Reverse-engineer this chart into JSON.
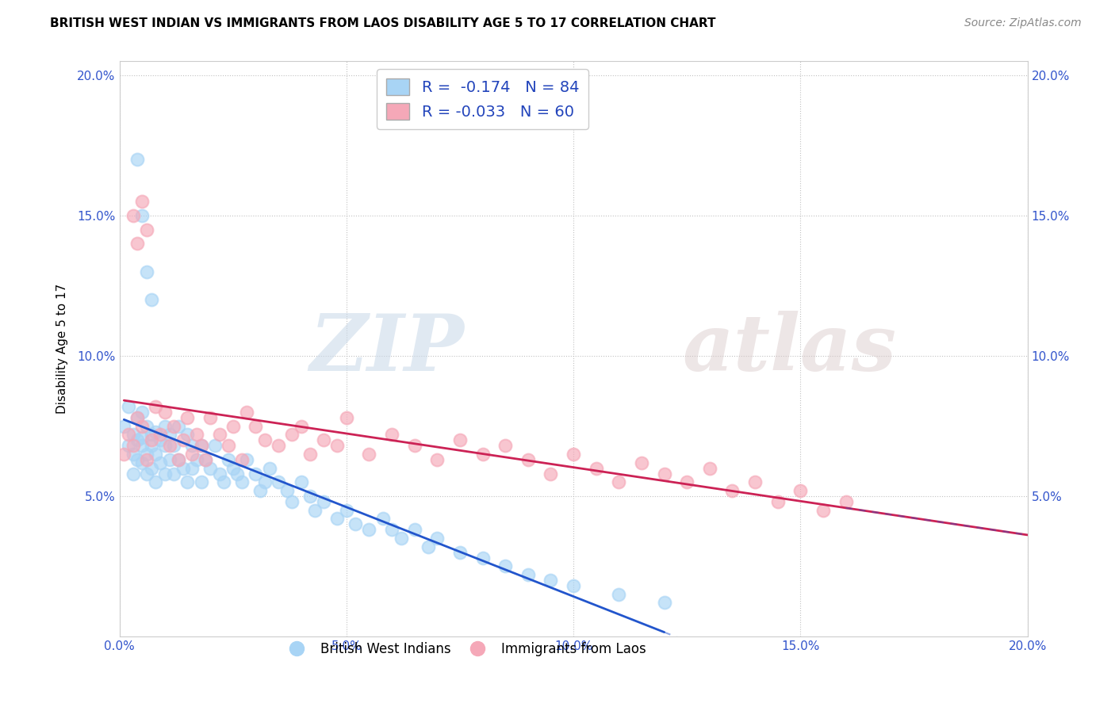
{
  "title": "BRITISH WEST INDIAN VS IMMIGRANTS FROM LAOS DISABILITY AGE 5 TO 17 CORRELATION CHART",
  "source": "Source: ZipAtlas.com",
  "ylabel": "Disability Age 5 to 17",
  "xlim": [
    0.0,
    0.2
  ],
  "ylim": [
    0.0,
    0.205
  ],
  "xticks": [
    0.0,
    0.05,
    0.1,
    0.15,
    0.2
  ],
  "yticks": [
    0.05,
    0.1,
    0.15,
    0.2
  ],
  "xticklabels": [
    "0.0%",
    "5.0%",
    "10.0%",
    "15.0%",
    "20.0%"
  ],
  "yticklabels": [
    "5.0%",
    "10.0%",
    "15.0%",
    "20.0%"
  ],
  "blue_color": "#a8d4f5",
  "blue_line_color": "#2255cc",
  "pink_color": "#f5a8b8",
  "pink_line_color": "#cc2255",
  "blue_label": "British West Indians",
  "pink_label": "Immigrants from Laos",
  "blue_R": -0.174,
  "blue_N": 84,
  "pink_R": -0.033,
  "pink_N": 60,
  "watermark_zip": "ZIP",
  "watermark_atlas": "atlas",
  "blue_scatter_x": [
    0.001,
    0.002,
    0.002,
    0.003,
    0.003,
    0.003,
    0.004,
    0.004,
    0.004,
    0.005,
    0.005,
    0.005,
    0.005,
    0.006,
    0.006,
    0.006,
    0.007,
    0.007,
    0.007,
    0.008,
    0.008,
    0.008,
    0.009,
    0.009,
    0.01,
    0.01,
    0.01,
    0.011,
    0.011,
    0.012,
    0.012,
    0.013,
    0.013,
    0.014,
    0.015,
    0.015,
    0.016,
    0.016,
    0.017,
    0.018,
    0.018,
    0.019,
    0.02,
    0.021,
    0.022,
    0.023,
    0.024,
    0.025,
    0.026,
    0.027,
    0.028,
    0.03,
    0.031,
    0.032,
    0.033,
    0.035,
    0.037,
    0.038,
    0.04,
    0.042,
    0.043,
    0.045,
    0.048,
    0.05,
    0.052,
    0.055,
    0.058,
    0.06,
    0.062,
    0.065,
    0.068,
    0.07,
    0.075,
    0.08,
    0.085,
    0.09,
    0.095,
    0.1,
    0.11,
    0.12,
    0.004,
    0.005,
    0.006,
    0.007
  ],
  "blue_scatter_y": [
    0.075,
    0.068,
    0.082,
    0.065,
    0.072,
    0.058,
    0.07,
    0.078,
    0.063,
    0.071,
    0.068,
    0.062,
    0.08,
    0.075,
    0.065,
    0.058,
    0.072,
    0.06,
    0.068,
    0.073,
    0.065,
    0.055,
    0.07,
    0.062,
    0.075,
    0.068,
    0.058,
    0.063,
    0.072,
    0.068,
    0.058,
    0.063,
    0.075,
    0.06,
    0.072,
    0.055,
    0.068,
    0.06,
    0.063,
    0.068,
    0.055,
    0.063,
    0.06,
    0.068,
    0.058,
    0.055,
    0.063,
    0.06,
    0.058,
    0.055,
    0.063,
    0.058,
    0.052,
    0.055,
    0.06,
    0.055,
    0.052,
    0.048,
    0.055,
    0.05,
    0.045,
    0.048,
    0.042,
    0.045,
    0.04,
    0.038,
    0.042,
    0.038,
    0.035,
    0.038,
    0.032,
    0.035,
    0.03,
    0.028,
    0.025,
    0.022,
    0.02,
    0.018,
    0.015,
    0.012,
    0.17,
    0.15,
    0.13,
    0.12
  ],
  "pink_scatter_x": [
    0.001,
    0.002,
    0.003,
    0.004,
    0.005,
    0.006,
    0.007,
    0.008,
    0.009,
    0.01,
    0.011,
    0.012,
    0.013,
    0.014,
    0.015,
    0.016,
    0.017,
    0.018,
    0.019,
    0.02,
    0.022,
    0.024,
    0.025,
    0.027,
    0.028,
    0.03,
    0.032,
    0.035,
    0.038,
    0.04,
    0.042,
    0.045,
    0.048,
    0.05,
    0.055,
    0.06,
    0.065,
    0.07,
    0.075,
    0.08,
    0.085,
    0.09,
    0.095,
    0.1,
    0.105,
    0.11,
    0.115,
    0.12,
    0.125,
    0.13,
    0.135,
    0.14,
    0.145,
    0.15,
    0.155,
    0.16,
    0.003,
    0.004,
    0.005,
    0.006
  ],
  "pink_scatter_y": [
    0.065,
    0.072,
    0.068,
    0.078,
    0.075,
    0.063,
    0.07,
    0.082,
    0.072,
    0.08,
    0.068,
    0.075,
    0.063,
    0.07,
    0.078,
    0.065,
    0.072,
    0.068,
    0.063,
    0.078,
    0.072,
    0.068,
    0.075,
    0.063,
    0.08,
    0.075,
    0.07,
    0.068,
    0.072,
    0.075,
    0.065,
    0.07,
    0.068,
    0.078,
    0.065,
    0.072,
    0.068,
    0.063,
    0.07,
    0.065,
    0.068,
    0.063,
    0.058,
    0.065,
    0.06,
    0.055,
    0.062,
    0.058,
    0.055,
    0.06,
    0.052,
    0.055,
    0.048,
    0.052,
    0.045,
    0.048,
    0.15,
    0.14,
    0.155,
    0.145
  ]
}
